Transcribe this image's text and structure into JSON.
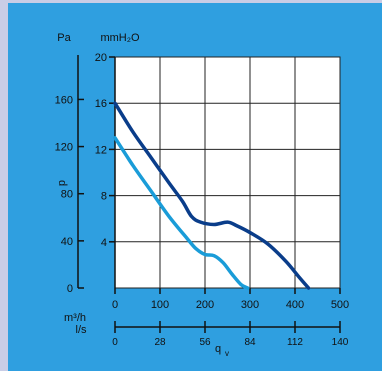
{
  "colors": {
    "outer_background": "#c9cde6",
    "panel_background": "#2f9fe0",
    "plot_background": "#ffffff",
    "curve_dark": "#0a3d8a",
    "curve_light": "#1a9cd8"
  },
  "chart_data": {
    "type": "line",
    "units": {
      "pa": "Pa",
      "mmh2o": "mmH₂O",
      "m3h": "m³/h",
      "ls": "l/s"
    },
    "ylabel": "p",
    "xlabel": "q",
    "xlabel_subscript": "v",
    "grid": true,
    "xlim": [
      0,
      500
    ],
    "ylim_mmh2o": [
      0,
      20
    ],
    "ylim_pa": [
      0,
      196
    ],
    "x_ticks_m3h": [
      "0",
      "100",
      "200",
      "300",
      "400",
      "500"
    ],
    "x_ticks_ls": [
      "0",
      "28",
      "56",
      "84",
      "112",
      "140"
    ],
    "y_ticks_mmh2o": [
      "4",
      "8",
      "12",
      "16",
      "20"
    ],
    "y_ticks_pa": [
      "0",
      "40",
      "80",
      "120",
      "160"
    ],
    "series": [
      {
        "x": [
          0,
          40,
          80,
          120,
          150,
          170,
          190,
          220,
          250,
          270,
          300,
          340,
          380,
          410,
          430
        ],
        "y": [
          16.0,
          13.5,
          11.3,
          9.1,
          7.5,
          6.2,
          5.7,
          5.5,
          5.7,
          5.4,
          4.8,
          3.8,
          2.3,
          0.9,
          0.0
        ]
      },
      {
        "x": [
          0,
          40,
          80,
          120,
          160,
          180,
          200,
          220,
          240,
          260,
          280,
          295
        ],
        "y": [
          13.0,
          10.6,
          8.4,
          6.2,
          4.3,
          3.4,
          2.9,
          2.8,
          2.2,
          1.2,
          0.3,
          0.0
        ]
      }
    ]
  }
}
